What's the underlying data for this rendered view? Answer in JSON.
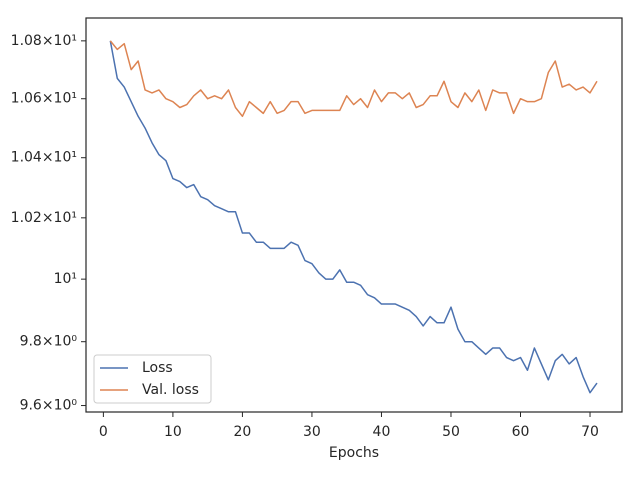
{
  "chart_data": {
    "type": "line",
    "xlabel": "Epochs",
    "x": [
      1,
      2,
      3,
      4,
      5,
      6,
      7,
      8,
      9,
      10,
      11,
      12,
      13,
      14,
      15,
      16,
      17,
      18,
      19,
      20,
      21,
      22,
      23,
      24,
      25,
      26,
      27,
      28,
      29,
      30,
      31,
      32,
      33,
      34,
      35,
      36,
      37,
      38,
      39,
      40,
      41,
      42,
      43,
      44,
      45,
      46,
      47,
      48,
      49,
      50,
      51,
      52,
      53,
      54,
      55,
      56,
      57,
      58,
      59,
      60,
      61,
      62,
      63,
      64,
      65,
      66,
      67,
      68,
      69,
      70,
      71
    ],
    "series": [
      {
        "name": "Loss",
        "color": "#4c72b0",
        "values": [
          10.8,
          10.67,
          10.64,
          10.59,
          10.54,
          10.5,
          10.45,
          10.41,
          10.39,
          10.33,
          10.32,
          10.3,
          10.31,
          10.27,
          10.26,
          10.24,
          10.23,
          10.22,
          10.22,
          10.15,
          10.15,
          10.12,
          10.12,
          10.1,
          10.1,
          10.1,
          10.12,
          10.11,
          10.06,
          10.05,
          10.02,
          10.0,
          10.0,
          10.03,
          9.99,
          9.99,
          9.98,
          9.95,
          9.94,
          9.92,
          9.92,
          9.92,
          9.91,
          9.9,
          9.88,
          9.85,
          9.88,
          9.86,
          9.86,
          9.91,
          9.84,
          9.8,
          9.8,
          9.78,
          9.76,
          9.78,
          9.78,
          9.75,
          9.74,
          9.75,
          9.71,
          9.78,
          9.73,
          9.68,
          9.74,
          9.76,
          9.73,
          9.75,
          9.69,
          9.64,
          9.67
        ]
      },
      {
        "name": "Val. loss",
        "color": "#dd8452",
        "values": [
          10.8,
          10.77,
          10.79,
          10.7,
          10.73,
          10.63,
          10.62,
          10.63,
          10.6,
          10.59,
          10.57,
          10.58,
          10.61,
          10.63,
          10.6,
          10.61,
          10.6,
          10.63,
          10.57,
          10.54,
          10.59,
          10.57,
          10.55,
          10.59,
          10.55,
          10.56,
          10.59,
          10.59,
          10.55,
          10.56,
          10.56,
          10.56,
          10.56,
          10.56,
          10.61,
          10.58,
          10.6,
          10.57,
          10.63,
          10.59,
          10.62,
          10.62,
          10.6,
          10.62,
          10.57,
          10.58,
          10.61,
          10.61,
          10.66,
          10.59,
          10.57,
          10.62,
          10.59,
          10.63,
          10.56,
          10.63,
          10.62,
          10.62,
          10.55,
          10.6,
          10.59,
          10.59,
          10.6,
          10.69,
          10.73,
          10.64,
          10.65,
          10.63,
          10.64,
          10.62,
          10.66
        ]
      }
    ],
    "xlim": [
      -2.5,
      74.6
    ],
    "xticks": [
      0,
      10,
      20,
      30,
      40,
      50,
      60,
      70
    ],
    "ylim": [
      9.58,
      10.88
    ],
    "log_y": true,
    "yticks": [
      {
        "value": 9.6,
        "label": "9.6×10⁰"
      },
      {
        "value": 9.8,
        "label": "9.8×10⁰"
      },
      {
        "value": 10,
        "label": "10¹"
      },
      {
        "value": 10.2,
        "label": "1.02×10¹"
      },
      {
        "value": 10.4,
        "label": "1.04×10¹"
      },
      {
        "value": 10.6,
        "label": "1.06×10¹"
      },
      {
        "value": 10.8,
        "label": "1.08×10¹"
      }
    ],
    "legend": "lower left"
  }
}
